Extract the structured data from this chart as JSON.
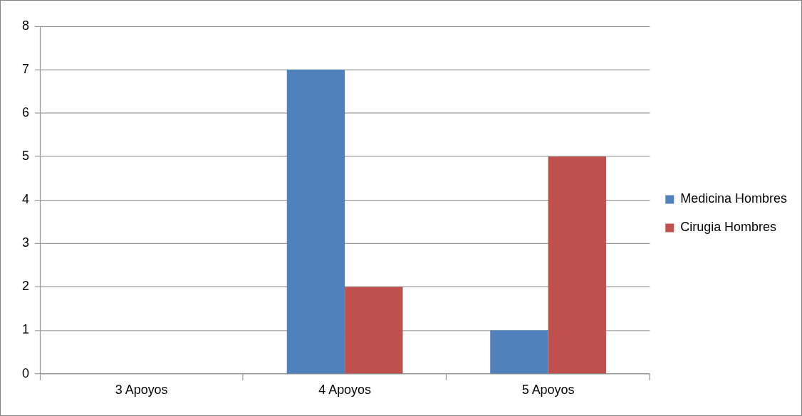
{
  "chart_data": {
    "type": "bar",
    "categories": [
      "3 Apoyos",
      "4 Apoyos",
      "5 Apoyos"
    ],
    "series": [
      {
        "name": "Medicina Hombres",
        "color": "#4f81bd",
        "values": [
          0,
          7,
          1
        ]
      },
      {
        "name": "Cirugia Hombres",
        "color": "#c0504d",
        "values": [
          0,
          2,
          5
        ]
      }
    ],
    "ylim": [
      0,
      8
    ],
    "yticks": [
      0,
      1,
      2,
      3,
      4,
      5,
      6,
      7,
      8
    ],
    "grid": "y",
    "legend": "right"
  }
}
